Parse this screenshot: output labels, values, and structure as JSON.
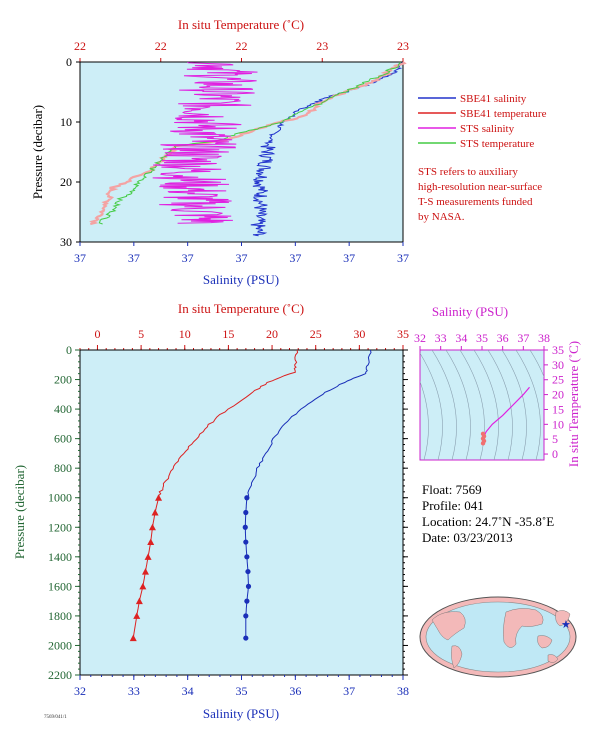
{
  "chart_data": [
    {
      "type": "line",
      "panel": "surface",
      "top_axis_title": "In situ Temperature (˚C)",
      "top_ticks": [
        "22",
        "22",
        "22",
        "23",
        "23"
      ],
      "bottom_axis_title": "Salinity (PSU)",
      "bottom_ticks": [
        "37",
        "37",
        "37",
        "37",
        "37",
        "37",
        "37"
      ],
      "ylabel": "Pressure (decibar)",
      "y_ticks": [
        0,
        10,
        20,
        30
      ],
      "ylim": [
        30,
        0
      ],
      "legend": [
        {
          "name": "SBE41 salinity",
          "color": "#2233cc"
        },
        {
          "name": "SBE41 temperature",
          "color": "#dd2222"
        },
        {
          "name": "STS salinity",
          "color": "#e020e0"
        },
        {
          "name": "STS temperature",
          "color": "#44cc44"
        }
      ],
      "note": [
        "STS refers to auxiliary",
        "high-resolution near-surface",
        "T-S measurements funded",
        "by NASA."
      ],
      "series": [
        {
          "name": "SBE41 salinity",
          "x_frac": [
            1.0,
            0.97,
            0.92,
            0.88,
            0.82,
            0.76,
            0.72,
            0.68,
            0.63,
            0.6,
            0.58,
            0.58,
            0.57,
            0.56,
            0.56,
            0.56,
            0.55,
            0.55,
            0.56
          ],
          "pressure": [
            0,
            2,
            3,
            4,
            5,
            6,
            7,
            8,
            10,
            12,
            14,
            16,
            18,
            20,
            22,
            24,
            26,
            28,
            29
          ]
        },
        {
          "name": "SBE41 temperature",
          "x_frac": [
            1.0,
            0.92,
            0.82,
            0.74,
            0.7,
            0.62,
            0.56,
            0.5,
            0.46,
            0.3,
            0.26,
            0.22,
            0.18,
            0.14,
            0.1,
            0.08,
            0.06,
            0.04
          ],
          "pressure": [
            0,
            3,
            5,
            7,
            9,
            10,
            11,
            12,
            13,
            14,
            16,
            18,
            19,
            20,
            21,
            24,
            26,
            27
          ]
        },
        {
          "name": "STS temperature",
          "x_frac": [
            1.0,
            0.94,
            0.86,
            0.78,
            0.7,
            0.62,
            0.56,
            0.48,
            0.44,
            0.3,
            0.26,
            0.22,
            0.18,
            0.16,
            0.12,
            0.1,
            0.08,
            0.06
          ],
          "pressure": [
            0,
            2,
            4,
            6,
            8,
            10,
            11,
            12,
            13,
            14,
            16,
            18,
            20,
            22,
            23,
            25,
            26,
            27
          ]
        },
        {
          "name": "STS salinity",
          "x_center_frac": [
            0.45,
            0.42,
            0.38,
            0.34,
            0.36,
            0.4
          ],
          "pressure": [
            0,
            6,
            12,
            18,
            24,
            27
          ]
        }
      ]
    },
    {
      "type": "line",
      "panel": "profile",
      "top_axis_title": "In situ Temperature (˚C)",
      "top_ticks": [
        0,
        5,
        10,
        15,
        20,
        25,
        30,
        35
      ],
      "xlim_temperature": [
        -2,
        35
      ],
      "bottom_axis_title": "Salinity (PSU)",
      "bottom_ticks": [
        32,
        33,
        34,
        35,
        36,
        37,
        38
      ],
      "xlim_salinity": [
        32,
        38
      ],
      "ylabel": "Pressure (decibar)",
      "y_ticks": [
        0,
        200,
        400,
        600,
        800,
        1000,
        1200,
        1400,
        1600,
        1800,
        2000,
        2200
      ],
      "ylim": [
        2200,
        0
      ],
      "series": [
        {
          "name": "Temperature",
          "color": "#dd2222",
          "x": [
            22.8,
            22.7,
            22.5,
            19.5,
            17.5,
            14.5,
            12.5,
            11.0,
            9.5,
            8.5,
            7.5,
            7.0,
            6.6,
            6.3,
            6.1,
            5.8,
            5.5,
            5.2,
            4.8,
            4.5,
            4.1
          ],
          "pressure": [
            0,
            100,
            150,
            220,
            300,
            420,
            520,
            620,
            720,
            820,
            920,
            1000,
            1100,
            1200,
            1300,
            1400,
            1500,
            1600,
            1700,
            1800,
            1950
          ]
        },
        {
          "name": "Salinity",
          "color": "#1a2fb8",
          "x": [
            37.4,
            37.35,
            37.3,
            36.9,
            36.5,
            36.1,
            35.8,
            35.6,
            35.45,
            35.3,
            35.2,
            35.1,
            35.08,
            35.07,
            35.08,
            35.1,
            35.12,
            35.13,
            35.1,
            35.08,
            35.08
          ],
          "pressure": [
            0,
            100,
            160,
            220,
            300,
            400,
            500,
            600,
            700,
            800,
            900,
            1000,
            1100,
            1200,
            1300,
            1400,
            1500,
            1600,
            1700,
            1800,
            1950
          ]
        }
      ],
      "markers_from_pressure": 1000
    },
    {
      "type": "scatter",
      "panel": "ts-diagram",
      "top_axis_title": "Salinity (PSU)",
      "top_ticks": [
        32,
        33,
        34,
        35,
        36,
        37,
        38
      ],
      "xlim": [
        32,
        38
      ],
      "right_axis_title": "In situ Temperature (˚C)",
      "right_ticks": [
        0,
        5,
        10,
        15,
        20,
        25,
        30,
        35
      ],
      "ylim": [
        -2,
        35
      ],
      "series": [
        {
          "name": "T-S",
          "color": "#e020e0",
          "salinity": [
            35.05,
            35.08,
            35.1,
            35.2,
            35.5,
            36.0,
            36.5,
            37.0,
            37.3
          ],
          "temperature": [
            3.5,
            4.5,
            6.0,
            7.5,
            10.0,
            13.0,
            16.5,
            20.0,
            22.5
          ]
        }
      ]
    }
  ],
  "float_info": {
    "float": "Float:  7569",
    "profile": "Profile:  041",
    "location": "Location:  24.7˚N  -35.8˚E",
    "date": "Date:  03/23/2013"
  },
  "footer_code": "7569/041/1"
}
